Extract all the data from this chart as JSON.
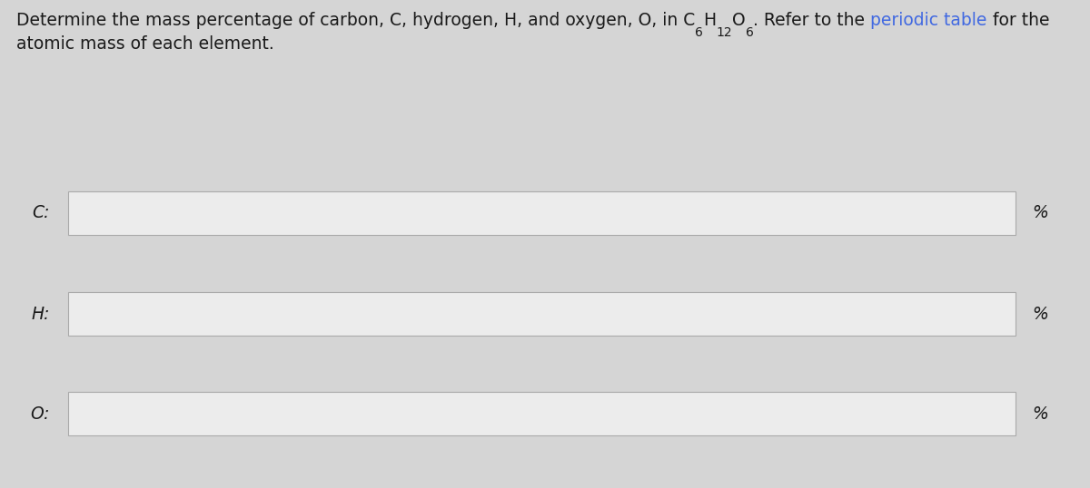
{
  "background_color": "#d5d5d5",
  "title_parts": [
    {
      "text": "Determine the mass percentage of carbon, C, hydrogen, H, and oxygen, O, in C",
      "color": "#1a1a1a",
      "sub": false,
      "fs": 13.5
    },
    {
      "text": "6",
      "color": "#1a1a1a",
      "sub": true,
      "fs": 10
    },
    {
      "text": "H",
      "color": "#1a1a1a",
      "sub": false,
      "fs": 13.5
    },
    {
      "text": "12",
      "color": "#1a1a1a",
      "sub": true,
      "fs": 10
    },
    {
      "text": "O",
      "color": "#1a1a1a",
      "sub": false,
      "fs": 13.5
    },
    {
      "text": "6",
      "color": "#1a1a1a",
      "sub": true,
      "fs": 10
    },
    {
      "text": ". Refer to the ",
      "color": "#1a1a1a",
      "sub": false,
      "fs": 13.5
    },
    {
      "text": "periodic table",
      "color": "#4169e1",
      "sub": false,
      "fs": 13.5
    },
    {
      "text": " for the",
      "color": "#1a1a1a",
      "sub": false,
      "fs": 13.5
    }
  ],
  "title_line2": "atomic mass of each element.",
  "labels": [
    "C:",
    "H:",
    "O:"
  ],
  "label_style": "italic",
  "label_fontsize": 13.5,
  "box_fill": "#ececec",
  "box_edge": "#aaaaaa",
  "box_edge_width": 0.8,
  "percent_symbol": "%",
  "percent_fontsize": 13.5,
  "text_color": "#1a1a1a",
  "link_color": "#4169e1",
  "title_fontsize": 13.5,
  "fig_width": 12.0,
  "fig_height": 5.38,
  "dpi": 100
}
